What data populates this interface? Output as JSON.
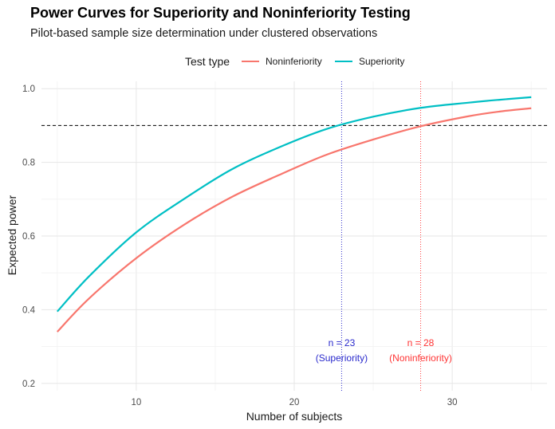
{
  "chart_data": {
    "type": "line",
    "title": "Power Curves for Superiority and Noninferiority Testing",
    "subtitle": "Pilot-based sample size determination under clustered observations",
    "xlabel": "Number of subjects",
    "ylabel": "Expected power",
    "xlim": [
      4,
      36
    ],
    "ylim": [
      0.18,
      1.02
    ],
    "x_ticks": [
      10,
      20,
      30
    ],
    "y_ticks": [
      0.2,
      0.4,
      0.6,
      0.8,
      1.0
    ],
    "y_tick_labels": [
      "0.2",
      "0.4",
      "0.6",
      "0.8",
      "1.0"
    ],
    "grid": true,
    "legend": {
      "title": "Test type",
      "position": "top",
      "entries": [
        "Noninferiority",
        "Superiority"
      ]
    },
    "series": [
      {
        "name": "Noninferiority",
        "color": "#F8766D",
        "x": [
          5,
          7,
          10,
          13,
          16,
          19,
          22,
          25,
          28,
          31,
          33,
          35
        ],
        "y": [
          0.34,
          0.43,
          0.54,
          0.63,
          0.705,
          0.765,
          0.82,
          0.862,
          0.898,
          0.925,
          0.938,
          0.947
        ]
      },
      {
        "name": "Superiority",
        "color": "#00BFC4",
        "x": [
          5,
          7,
          10,
          13,
          16,
          19,
          22,
          25,
          28,
          31,
          33,
          35
        ],
        "y": [
          0.395,
          0.49,
          0.61,
          0.7,
          0.78,
          0.84,
          0.89,
          0.924,
          0.948,
          0.962,
          0.97,
          0.977
        ]
      }
    ],
    "reference_lines": [
      {
        "type": "horizontal",
        "y": 0.9,
        "style": "dashed",
        "color": "#000000"
      },
      {
        "type": "vertical",
        "x": 23,
        "style": "dotted",
        "color": "#3333CC"
      },
      {
        "type": "vertical",
        "x": 28,
        "style": "dotted",
        "color": "#FF4444"
      }
    ],
    "annotations": [
      {
        "x": 23,
        "y": 0.28,
        "line1": "n = 23",
        "line2": "(Superiority)",
        "color": "#2a2acc"
      },
      {
        "x": 28,
        "y": 0.28,
        "line1": "n = 28",
        "line2": "(Noninferiority)",
        "color": "#ff3333"
      }
    ]
  }
}
